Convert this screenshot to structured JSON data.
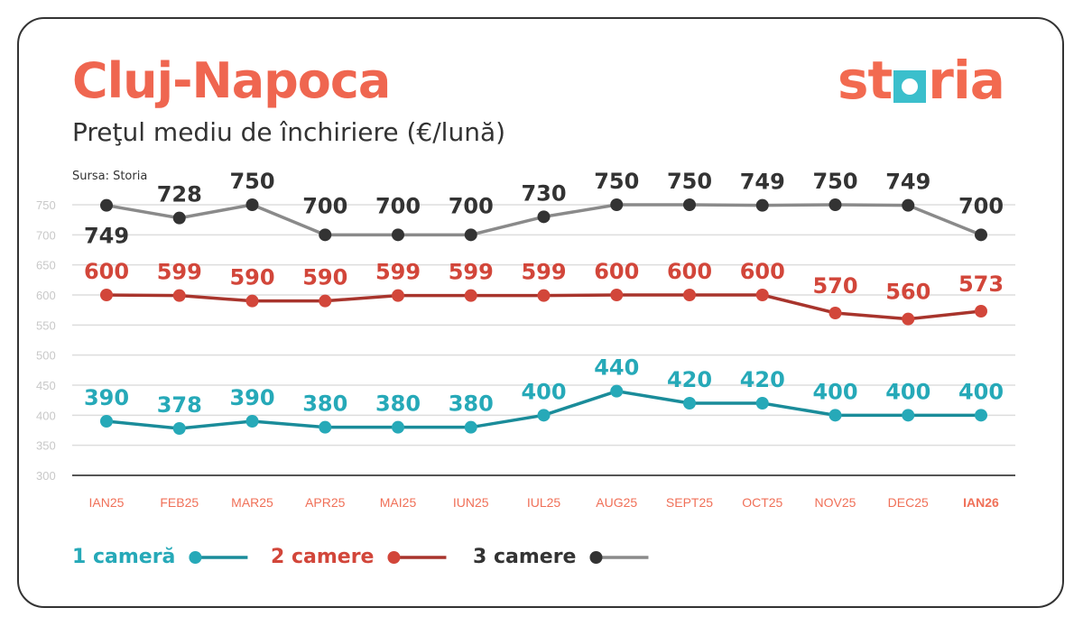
{
  "header": {
    "title": "Cluj-Napoca",
    "subtitle": "Preţul mediu de închiriere (€/lună)",
    "source": "Sursa: Storia",
    "logo": {
      "pre": "st",
      "post": "ria",
      "full": "storia"
    }
  },
  "chart_data": {
    "type": "line",
    "title": "Cluj-Napoca",
    "subtitle": "Preţul mediu de închiriere (€/lună)",
    "xlabel": "",
    "ylabel": "€/lună",
    "ylim": [
      300,
      750
    ],
    "yticks": [
      300,
      350,
      400,
      450,
      500,
      550,
      600,
      650,
      700,
      750
    ],
    "grid": true,
    "legend_placement": "bottom-left",
    "categories": [
      "IAN25",
      "FEB25",
      "MAR25",
      "APR25",
      "MAI25",
      "IUN25",
      "IUL25",
      "AUG25",
      "SEPT25",
      "OCT25",
      "NOV25",
      "DEC25",
      "IAN26"
    ],
    "series": [
      {
        "name": "1 cameră",
        "color": "#1a8c9a",
        "marker": "#26a9b8",
        "label_color": "#26a9b8",
        "values": [
          390,
          378,
          390,
          380,
          380,
          380,
          400,
          440,
          420,
          420,
          400,
          400,
          400
        ]
      },
      {
        "name": "2 camere",
        "color": "#a8342c",
        "marker": "#d2463a",
        "label_color": "#d2463a",
        "values": [
          600,
          599,
          590,
          590,
          599,
          599,
          599,
          600,
          600,
          600,
          570,
          560,
          573
        ]
      },
      {
        "name": "3 camere",
        "color": "#8a8a8a",
        "marker": "#333333",
        "label_color": "#333333",
        "values": [
          749,
          728,
          750,
          700,
          700,
          700,
          730,
          750,
          750,
          749,
          750,
          749,
          700
        ]
      }
    ]
  }
}
